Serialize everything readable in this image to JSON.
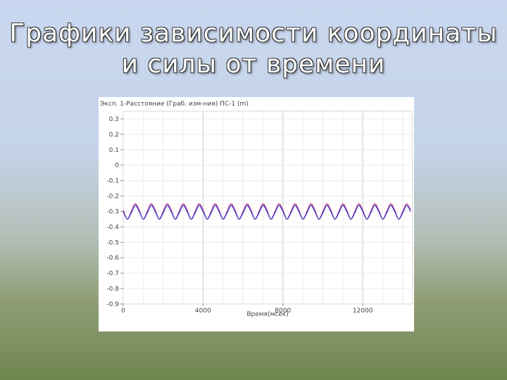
{
  "slide": {
    "title_line1": "Графики зависимости координаты",
    "title_line2": "и силы от времени"
  },
  "chart_data": {
    "type": "line",
    "title": "Эксп. 1-Расстояние (Граб. изм-ния) ПС-1 (m)",
    "xlabel": "Время(мсек)",
    "ylabel": "",
    "xlim": [
      0,
      14500
    ],
    "ylim": [
      -0.9,
      0.35
    ],
    "x_ticks": [
      0,
      4000,
      8000,
      12000
    ],
    "x_tick_labels": [
      "0",
      "4000",
      "8000",
      "12000"
    ],
    "y_ticks": [
      0.3,
      0.2,
      0.1,
      0,
      -0.1,
      -0.2,
      -0.3,
      -0.4,
      -0.5,
      -0.6,
      -0.7,
      -0.8,
      -0.9
    ],
    "y_tick_labels": [
      "0.3",
      "0.2",
      "0.1",
      "0",
      "-0.1",
      "-0.2",
      "-0.3",
      "-0.4",
      "-0.5",
      "-0.6",
      "-0.7",
      "-0.8",
      "-0.9"
    ],
    "grid": true,
    "series": [
      {
        "color": "#d04a8a",
        "x": [
          0,
          200,
          400,
          600,
          800,
          1000,
          1200,
          1400,
          1600,
          1800,
          2000,
          2200,
          2400,
          2600,
          2800,
          3000,
          3200,
          3400,
          3600,
          3800,
          4000,
          4200,
          4400,
          4600,
          4800,
          5000,
          5200,
          5400,
          5600,
          5800,
          6000,
          6200,
          6400,
          6600,
          6800,
          7000,
          7200,
          7400,
          7600,
          7800,
          8000,
          8200,
          8400,
          8600,
          8800,
          9000,
          9200,
          9400,
          9600,
          9800,
          10000,
          10200,
          10400,
          10600,
          10800,
          11000,
          11200,
          11400,
          11600,
          11800,
          12000,
          12200,
          12400,
          12600,
          12800,
          13000,
          13200,
          13400,
          13600,
          13800,
          14000,
          14200,
          14400
        ],
        "y": [
          -0.29,
          -0.35,
          -0.3,
          -0.25,
          -0.29,
          -0.35,
          -0.3,
          -0.25,
          -0.29,
          -0.35,
          -0.3,
          -0.25,
          -0.29,
          -0.35,
          -0.3,
          -0.25,
          -0.29,
          -0.35,
          -0.3,
          -0.25,
          -0.29,
          -0.35,
          -0.3,
          -0.25,
          -0.29,
          -0.35,
          -0.3,
          -0.25,
          -0.29,
          -0.35,
          -0.3,
          -0.25,
          -0.29,
          -0.35,
          -0.3,
          -0.25,
          -0.29,
          -0.35,
          -0.3,
          -0.25,
          -0.29,
          -0.35,
          -0.3,
          -0.25,
          -0.29,
          -0.35,
          -0.3,
          -0.25,
          -0.29,
          -0.35,
          -0.3,
          -0.25,
          -0.29,
          -0.35,
          -0.3,
          -0.25,
          -0.29,
          -0.35,
          -0.3,
          -0.25,
          -0.29,
          -0.35,
          -0.3,
          -0.25,
          -0.29,
          -0.35,
          -0.3,
          -0.25,
          -0.29,
          -0.35,
          -0.3,
          -0.25,
          -0.29
        ]
      },
      {
        "color": "#3a3ad0",
        "x": [
          0,
          200,
          400,
          600,
          800,
          1000,
          1200,
          1400,
          1600,
          1800,
          2000,
          2200,
          2400,
          2600,
          2800,
          3000,
          3200,
          3400,
          3600,
          3800,
          4000,
          4200,
          4400,
          4600,
          4800,
          5000,
          5200,
          5400,
          5600,
          5800,
          6000,
          6200,
          6400,
          6600,
          6800,
          7000,
          7200,
          7400,
          7600,
          7800,
          8000,
          8200,
          8400,
          8600,
          8800,
          9000,
          9200,
          9400,
          9600,
          9800,
          10000,
          10200,
          10400,
          10600,
          10800,
          11000,
          11200,
          11400,
          11600,
          11800,
          12000,
          12200,
          12400,
          12600,
          12800,
          13000,
          13200,
          13400,
          13600,
          13800,
          14000,
          14200,
          14400
        ],
        "y": [
          -0.3,
          -0.35,
          -0.31,
          -0.26,
          -0.3,
          -0.35,
          -0.31,
          -0.26,
          -0.3,
          -0.35,
          -0.31,
          -0.26,
          -0.3,
          -0.35,
          -0.31,
          -0.26,
          -0.3,
          -0.35,
          -0.31,
          -0.26,
          -0.3,
          -0.35,
          -0.31,
          -0.26,
          -0.3,
          -0.35,
          -0.31,
          -0.26,
          -0.3,
          -0.35,
          -0.31,
          -0.26,
          -0.3,
          -0.35,
          -0.31,
          -0.26,
          -0.3,
          -0.35,
          -0.31,
          -0.26,
          -0.3,
          -0.35,
          -0.31,
          -0.26,
          -0.3,
          -0.35,
          -0.31,
          -0.26,
          -0.3,
          -0.35,
          -0.31,
          -0.26,
          -0.3,
          -0.35,
          -0.31,
          -0.26,
          -0.3,
          -0.35,
          -0.31,
          -0.26,
          -0.3,
          -0.35,
          -0.31,
          -0.26,
          -0.3,
          -0.35,
          -0.31,
          -0.26,
          -0.3,
          -0.35,
          -0.31,
          -0.26,
          -0.3
        ]
      }
    ]
  }
}
